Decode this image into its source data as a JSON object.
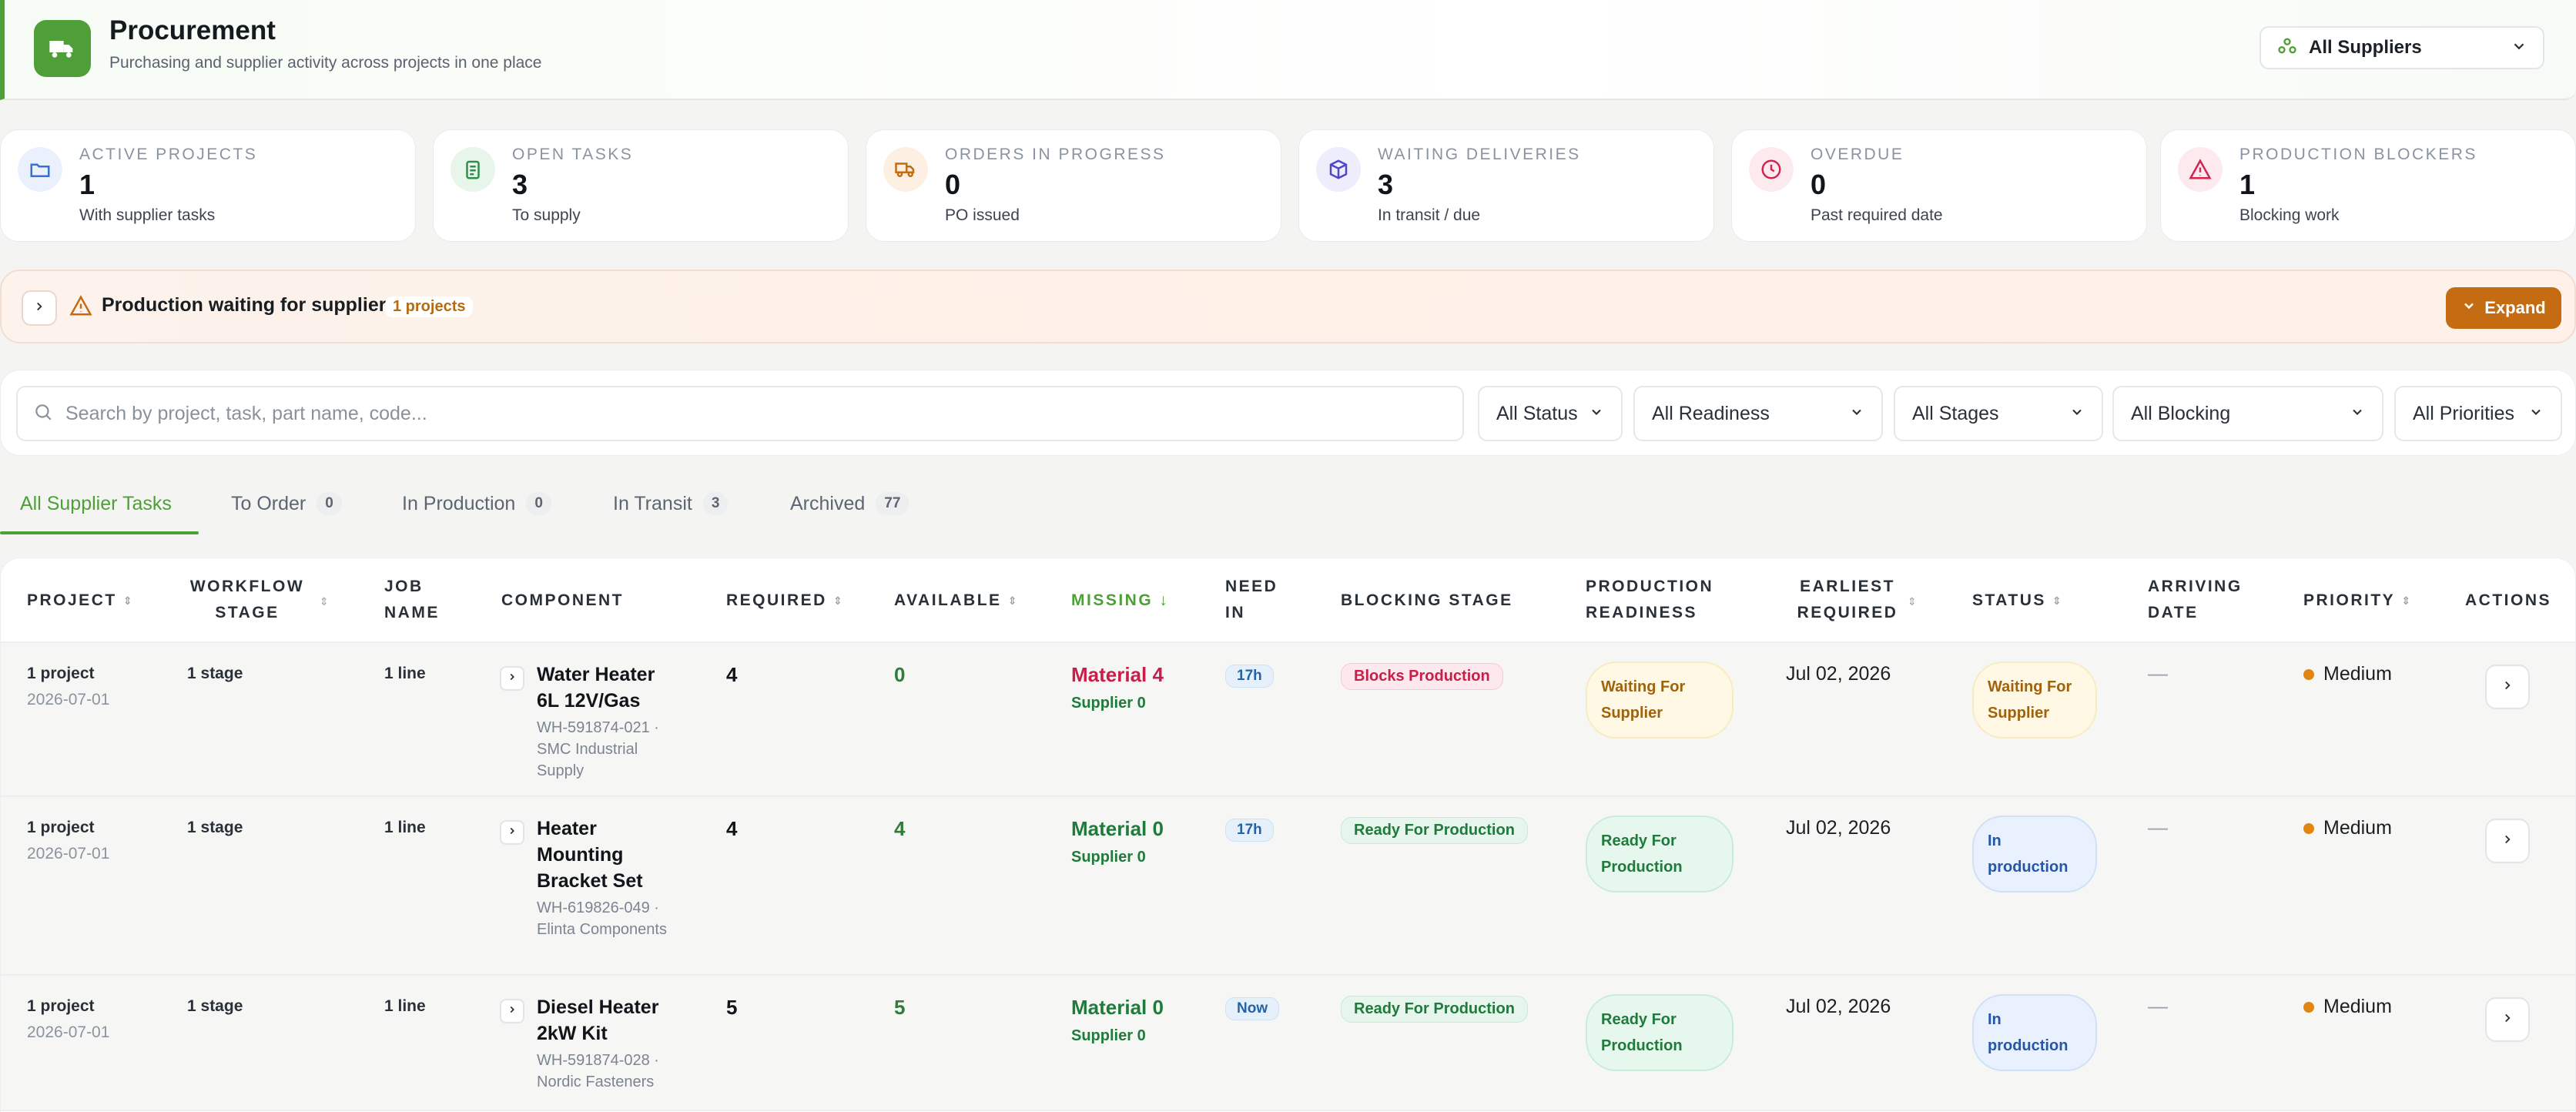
{
  "header": {
    "title": "Procurement",
    "subtitle": "Purchasing and supplier activity across projects in one place",
    "supplier_filter": "All Suppliers"
  },
  "kpis": [
    {
      "label": "Active Projects",
      "value": "1",
      "sub": "With supplier tasks",
      "icon": "folder-icon",
      "color": "#3b6fd6"
    },
    {
      "label": "Open Tasks",
      "value": "3",
      "sub": "To supply",
      "icon": "clipboard-icon",
      "color": "#2f8f4a"
    },
    {
      "label": "Orders in Progress",
      "value": "0",
      "sub": "PO issued",
      "icon": "truck-icon",
      "color": "#c56b12"
    },
    {
      "label": "Waiting Deliveries",
      "value": "3",
      "sub": "In transit / due",
      "icon": "package-icon",
      "color": "#4f46c8"
    },
    {
      "label": "Overdue",
      "value": "0",
      "sub": "Past required date",
      "icon": "clock-icon",
      "color": "#d0264e"
    },
    {
      "label": "Production Blockers",
      "value": "1",
      "sub": "Blocking work",
      "icon": "warning-icon",
      "color": "#d0264e"
    }
  ],
  "alert": {
    "title": "Production waiting for supplier",
    "count": "1 projects",
    "expand_label": "Expand"
  },
  "filters": {
    "search_placeholder": "Search by project, task, part name, code...",
    "status": "All Status",
    "readiness": "All Readiness",
    "stages": "All Stages",
    "blocking": "All Blocking",
    "priorities": "All Priorities"
  },
  "tabs": [
    {
      "label": "All Supplier Tasks",
      "count": ""
    },
    {
      "label": "To Order",
      "count": "0"
    },
    {
      "label": "In Production",
      "count": "0"
    },
    {
      "label": "In Transit",
      "count": "3"
    },
    {
      "label": "Archived",
      "count": "77"
    }
  ],
  "columns": {
    "project": "Project",
    "workflow_stage": "Workflow Stage",
    "job_name": "Job Name",
    "component": "Component",
    "required": "Required",
    "available": "Available",
    "missing": "Missing",
    "need_in": "Need In",
    "blocking_stage": "Blocking Stage",
    "production_readiness": "Production Readiness",
    "earliest_required": "Earliest Required",
    "status": "Status",
    "arriving_date": "Arriving Date",
    "priority": "Priority",
    "actions": "Actions"
  },
  "rows": [
    {
      "project": "1 project",
      "project_date": "2026-07-01",
      "stage": "1 stage",
      "job": "1 line",
      "component_name": "Water Heater 6L 12V/Gas",
      "component_code": "WH-591874-021 · SMC Industrial Supply",
      "required": "4",
      "available": "0",
      "missing": "Material 4",
      "supplier": "Supplier 0",
      "need_in": "17h",
      "blocking": "Blocks Production",
      "readiness": "Waiting For Supplier",
      "earliest": "Jul 02, 2026",
      "status": "Waiting For Supplier",
      "arriving": "—",
      "priority": "Medium"
    },
    {
      "project": "1 project",
      "project_date": "2026-07-01",
      "stage": "1 stage",
      "job": "1 line",
      "component_name": "Heater Mounting Bracket Set",
      "component_code": "WH-619826-049 · Elinta Components",
      "required": "4",
      "available": "4",
      "missing": "Material 0",
      "supplier": "Supplier 0",
      "need_in": "17h",
      "blocking": "Ready For Production",
      "readiness": "Ready For Production",
      "earliest": "Jul 02, 2026",
      "status": "In production",
      "arriving": "—",
      "priority": "Medium"
    },
    {
      "project": "1 project",
      "project_date": "2026-07-01",
      "stage": "1 stage",
      "job": "1 line",
      "component_name": "Diesel Heater 2kW Kit",
      "component_code": "WH-591874-028 · Nordic Fasteners",
      "required": "5",
      "available": "5",
      "missing": "Material 0",
      "supplier": "Supplier 0",
      "need_in": "Now",
      "blocking": "Ready For Production",
      "readiness": "Ready For Production",
      "earliest": "Jul 02, 2026",
      "status": "In production",
      "arriving": "—",
      "priority": "Medium"
    }
  ]
}
